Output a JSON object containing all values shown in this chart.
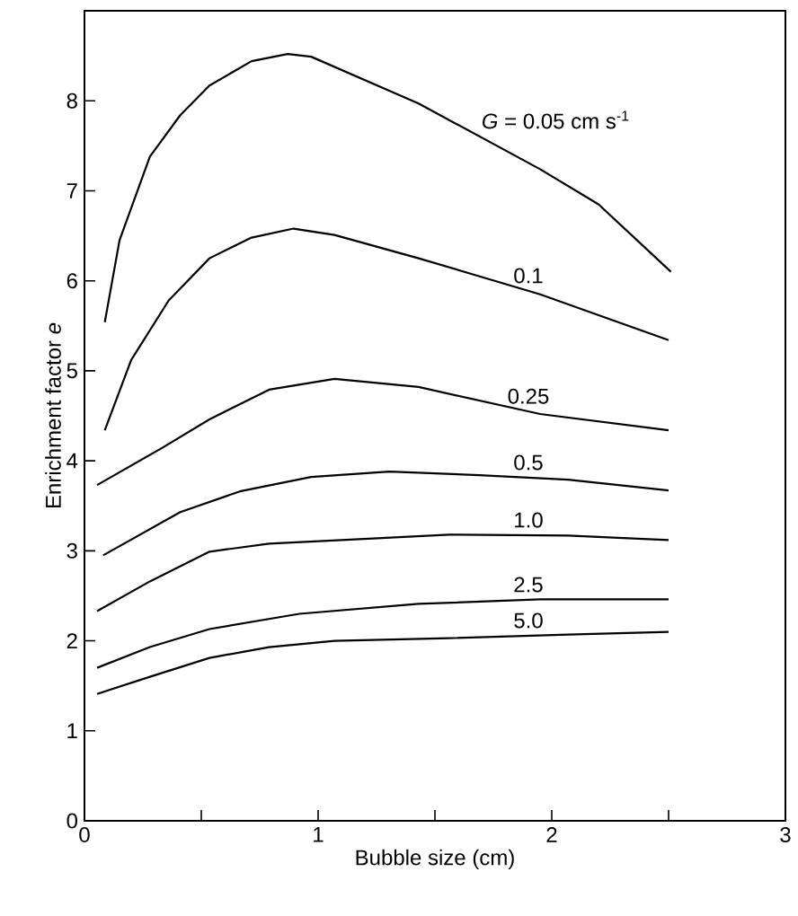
{
  "chart_data": {
    "type": "line",
    "xlabel": "Bubble size (cm)",
    "ylabel": "Enrichment factor  *e*",
    "xlim": [
      0,
      3
    ],
    "ylim": [
      0,
      9
    ],
    "xticks": [
      0,
      {
        "value": 0.5,
        "label": null
      },
      1,
      {
        "value": 1.5,
        "label": null
      },
      2,
      {
        "value": 2.5,
        "label": null
      },
      3
    ],
    "yticks": [
      0,
      1,
      2,
      3,
      4,
      5,
      6,
      7,
      8
    ],
    "series": [
      {
        "name": "*G* = 0.05 cm s$^{-1}$",
        "color": "#000000",
        "x": [
          0.087,
          0.15,
          0.28,
          0.41,
          0.535,
          0.715,
          0.87,
          0.97,
          1.43,
          1.95,
          2.2,
          2.51
        ],
        "values": [
          5.54,
          6.45,
          7.38,
          7.84,
          8.17,
          8.44,
          8.52,
          8.49,
          7.97,
          7.24,
          6.85,
          6.1
        ]
      },
      {
        "name": "0.1",
        "color": "#000000",
        "x": [
          0.087,
          0.2,
          0.36,
          0.535,
          0.715,
          0.895,
          1.07,
          1.43,
          1.95,
          2.5
        ],
        "values": [
          4.34,
          5.12,
          5.78,
          6.25,
          6.48,
          6.58,
          6.51,
          6.25,
          5.85,
          5.34
        ]
      },
      {
        "name": "0.25",
        "color": "#000000",
        "x": [
          0.054,
          0.33,
          0.535,
          0.79,
          1.07,
          1.43,
          1.95,
          2.5
        ],
        "values": [
          3.73,
          4.14,
          4.46,
          4.79,
          4.91,
          4.82,
          4.52,
          4.34
        ]
      },
      {
        "name": "0.5",
        "color": "#000000",
        "x": [
          0.08,
          0.41,
          0.665,
          0.97,
          1.305,
          1.69,
          2.07,
          2.5
        ],
        "values": [
          2.95,
          3.43,
          3.66,
          3.82,
          3.88,
          3.84,
          3.79,
          3.67
        ]
      },
      {
        "name": "1.0",
        "color": "#000000",
        "x": [
          0.054,
          0.28,
          0.535,
          0.79,
          1.1,
          1.56,
          2.07,
          2.5
        ],
        "values": [
          2.33,
          2.66,
          2.99,
          3.08,
          3.12,
          3.18,
          3.17,
          3.12
        ]
      },
      {
        "name": "2.5",
        "color": "#000000",
        "x": [
          0.054,
          0.28,
          0.535,
          0.92,
          1.43,
          1.95,
          2.5
        ],
        "values": [
          1.7,
          1.93,
          2.13,
          2.3,
          2.41,
          2.46,
          2.46
        ]
      },
      {
        "name": "5.0",
        "color": "#000000",
        "x": [
          0.054,
          0.28,
          0.535,
          0.79,
          1.07,
          1.56,
          2.07,
          2.5
        ],
        "values": [
          1.41,
          1.6,
          1.81,
          1.93,
          2.0,
          2.03,
          2.07,
          2.1
        ]
      }
    ]
  }
}
